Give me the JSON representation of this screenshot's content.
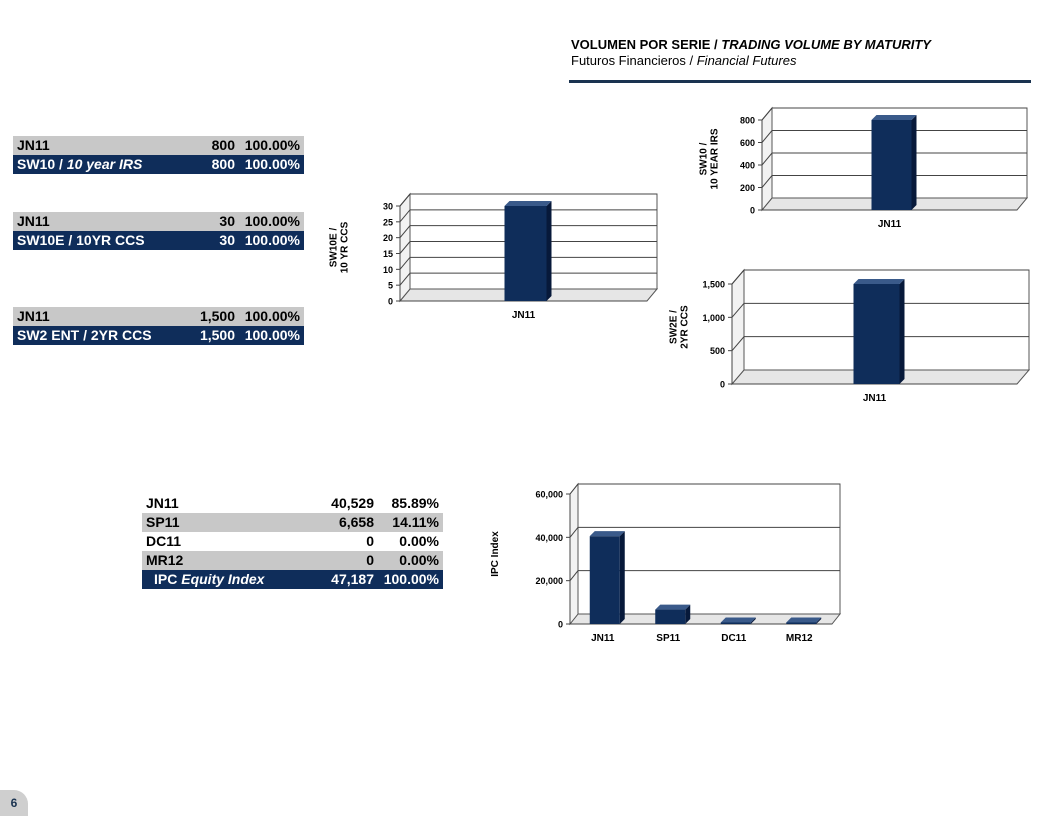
{
  "header": {
    "title_es": "VOLUMEN POR SERIE",
    "title_sep": " / ",
    "title_en": "TRADING VOLUME BY MATURITY",
    "subtitle_es": "Futuros Financieros",
    "subtitle_sep": " / ",
    "subtitle_en": "Financial Futures"
  },
  "tables": {
    "sw10": {
      "rows": [
        {
          "label": "JN11",
          "volume": "800",
          "pct": "100.00%"
        }
      ],
      "total": {
        "label_pre": "SW10 / ",
        "label_em": "10 year IRS",
        "volume": "800",
        "pct": "100.00%"
      }
    },
    "sw10e": {
      "rows": [
        {
          "label": "JN11",
          "volume": "30",
          "pct": "100.00%"
        }
      ],
      "total": {
        "label": "SW10E / 10YR CCS",
        "volume": "30",
        "pct": "100.00%"
      }
    },
    "sw2e": {
      "rows": [
        {
          "label": "JN11",
          "volume": "1,500",
          "pct": "100.00%"
        }
      ],
      "total": {
        "label": "SW2 ENT / 2YR CCS",
        "volume": "1,500",
        "pct": "100.00%"
      }
    },
    "ipc": {
      "rows": [
        {
          "label": "JN11",
          "volume": "40,529",
          "pct": "85.89%"
        },
        {
          "label": "SP11",
          "volume": "6,658",
          "pct": "14.11%"
        },
        {
          "label": "DC11",
          "volume": "0",
          "pct": "0.00%"
        },
        {
          "label": "MR12",
          "volume": "0",
          "pct": "0.00%"
        }
      ],
      "total": {
        "label_pre": "IPC ",
        "label_em": "Equity Index",
        "volume": "47,187",
        "pct": "100.00%"
      }
    }
  },
  "chart_data": [
    {
      "id": "sw10e",
      "type": "bar",
      "ylabel_lines": [
        "SW10E /",
        "10 YR CCS"
      ],
      "categories": [
        "JN11"
      ],
      "values": [
        30
      ],
      "ylim": [
        0,
        30
      ],
      "yticks": [
        "0",
        "5",
        "10",
        "15",
        "20",
        "25",
        "30"
      ],
      "grid": true,
      "bar_color": "#0f2d5a"
    },
    {
      "id": "sw10",
      "type": "bar",
      "ylabel_lines": [
        "SW10 /",
        "10 YEAR IRS"
      ],
      "categories": [
        "JN11"
      ],
      "values": [
        800
      ],
      "ylim": [
        0,
        800
      ],
      "yticks": [
        "0",
        "200",
        "400",
        "600",
        "800"
      ],
      "grid": true,
      "bar_color": "#0f2d5a"
    },
    {
      "id": "sw2e",
      "type": "bar",
      "ylabel_lines": [
        "SW2E /",
        "2YR CCS"
      ],
      "categories": [
        "JN11"
      ],
      "values": [
        1500
      ],
      "ylim": [
        0,
        1500
      ],
      "yticks": [
        "0",
        "500",
        "1,000",
        "1,500"
      ],
      "grid": true,
      "bar_color": "#0f2d5a"
    },
    {
      "id": "ipc",
      "type": "bar",
      "ylabel_lines": [
        "IPC Index"
      ],
      "categories": [
        "JN11",
        "SP11",
        "DC11",
        "MR12"
      ],
      "values": [
        40529,
        6658,
        0,
        0
      ],
      "ylim": [
        0,
        60000
      ],
      "yticks": [
        "0",
        "20,000",
        "40,000",
        "60,000"
      ],
      "grid": true,
      "bar_color": "#0f2d5a"
    }
  ],
  "page": {
    "number": "6"
  }
}
